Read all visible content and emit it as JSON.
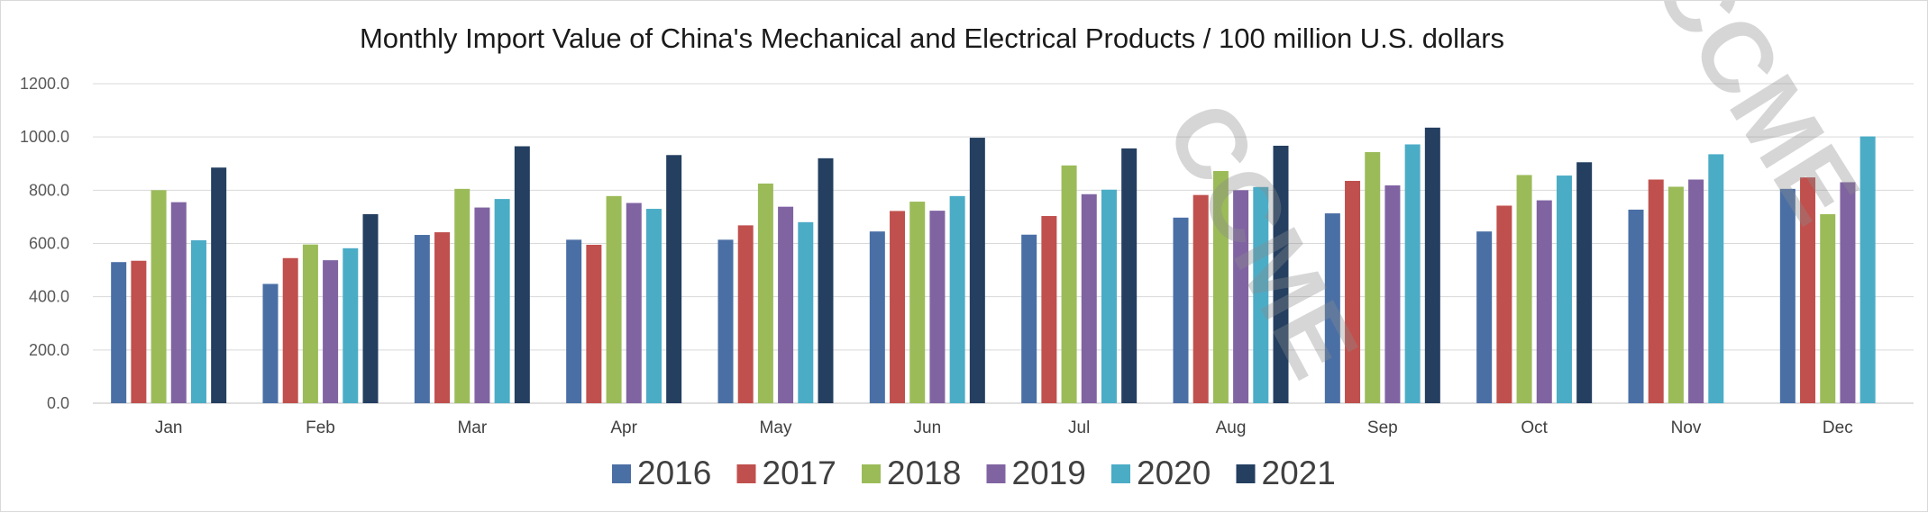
{
  "chart_data": {
    "type": "bar",
    "title": "Monthly Import Value of China's Mechanical and Electrical Products / 100 million U.S. dollars",
    "xlabel": "",
    "ylabel": "",
    "ylim": [
      0,
      1200
    ],
    "yticks": [
      "0.0",
      "200.0",
      "400.0",
      "600.0",
      "800.0",
      "1000.0",
      "1200.0"
    ],
    "grid": true,
    "legend_position": "bottom",
    "categories": [
      "Jan",
      "Feb",
      "Mar",
      "Apr",
      "May",
      "Jun",
      "Jul",
      "Aug",
      "Sep",
      "Oct",
      "Nov",
      "Dec"
    ],
    "series": [
      {
        "name": "2016",
        "color": "#4A6FA5",
        "values": [
          530,
          448,
          632,
          614,
          614,
          645,
          633,
          697,
          713,
          645,
          727,
          805
        ]
      },
      {
        "name": "2017",
        "color": "#C0504D",
        "values": [
          535,
          545,
          642,
          595,
          668,
          722,
          703,
          782,
          835,
          742,
          840,
          848
        ]
      },
      {
        "name": "2018",
        "color": "#9BBB59",
        "values": [
          800,
          596,
          805,
          778,
          825,
          757,
          893,
          872,
          943,
          857,
          813,
          710
        ]
      },
      {
        "name": "2019",
        "color": "#8064A2",
        "values": [
          755,
          537,
          735,
          752,
          738,
          723,
          785,
          800,
          818,
          762,
          840,
          830
        ]
      },
      {
        "name": "2020",
        "color": "#4BACC6",
        "values": [
          612,
          582,
          767,
          730,
          680,
          778,
          802,
          812,
          972,
          855,
          935,
          1002
        ]
      },
      {
        "name": "2021",
        "color": "#243F60",
        "values": [
          885,
          710,
          965,
          932,
          920,
          997,
          957,
          967,
          1035,
          905,
          null,
          null
        ]
      }
    ]
  },
  "watermark": {
    "text": "CCME",
    "color": "#8c8c8c"
  }
}
